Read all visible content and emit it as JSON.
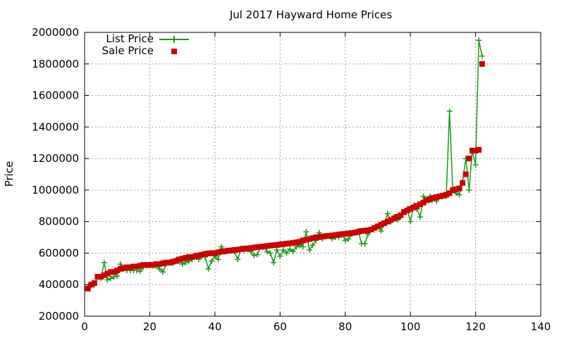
{
  "chart_data": {
    "type": "line",
    "title": "Jul 2017 Hayward Home Prices",
    "xlabel": "",
    "ylabel": "Price",
    "xlim": [
      0,
      140
    ],
    "ylim": [
      200000,
      2000000
    ],
    "x_ticks": [
      "0",
      "20",
      "40",
      "60",
      "80",
      "100",
      "120",
      "140"
    ],
    "y_ticks": [
      "200000",
      "400000",
      "600000",
      "800000",
      "1000000",
      "1200000",
      "1400000",
      "1600000",
      "1800000",
      "2000000"
    ],
    "grid": true,
    "legend_position": "top-left",
    "colors": {
      "list": "#1a9a1a",
      "sale": "#cc0000"
    },
    "sale": [
      375000,
      400000,
      410000,
      450000,
      450000,
      460000,
      470000,
      480000,
      480000,
      490000,
      500000,
      505000,
      510000,
      510000,
      515000,
      515000,
      520000,
      525000,
      525000,
      525000,
      525000,
      530000,
      530000,
      535000,
      540000,
      540000,
      545000,
      550000,
      560000,
      565000,
      570000,
      575000,
      575000,
      580000,
      585000,
      590000,
      595000,
      598000,
      600000,
      600000,
      605000,
      610000,
      612000,
      615000,
      617000,
      620000,
      622000,
      625000,
      628000,
      630000,
      632000,
      635000,
      638000,
      640000,
      642000,
      645000,
      648000,
      650000,
      652000,
      655000,
      657000,
      660000,
      662000,
      665000,
      668000,
      672000,
      680000,
      685000,
      690000,
      695000,
      700000,
      702000,
      705000,
      708000,
      710000,
      712000,
      715000,
      718000,
      720000,
      722000,
      725000,
      728000,
      730000,
      735000,
      740000,
      742000,
      745000,
      750000,
      760000,
      770000,
      780000,
      790000,
      800000,
      810000,
      820000,
      830000,
      840000,
      860000,
      870000,
      880000,
      890000,
      900000,
      910000,
      920000,
      935000,
      940000,
      950000,
      955000,
      960000,
      965000,
      970000,
      980000,
      1000000,
      1005000,
      1010000,
      1045000,
      1100000,
      1200000,
      1250000,
      1250000,
      1255000,
      1800000
    ],
    "list": [
      380000,
      395000,
      400000,
      450000,
      440000,
      540000,
      430000,
      440000,
      450000,
      455000,
      530000,
      500000,
      490000,
      490000,
      490000,
      490000,
      485000,
      510000,
      520000,
      525000,
      520000,
      520000,
      500000,
      480000,
      530000,
      540000,
      535000,
      555000,
      550000,
      530000,
      540000,
      550000,
      560000,
      585000,
      560000,
      580000,
      575000,
      500000,
      550000,
      580000,
      560000,
      640000,
      610000,
      615000,
      615000,
      610000,
      560000,
      630000,
      620000,
      625000,
      610000,
      585000,
      590000,
      640000,
      640000,
      610000,
      600000,
      540000,
      620000,
      580000,
      620000,
      600000,
      625000,
      610000,
      640000,
      650000,
      640000,
      735000,
      620000,
      650000,
      680000,
      730000,
      690000,
      705000,
      710000,
      690000,
      700000,
      700000,
      720000,
      680000,
      690000,
      720000,
      730000,
      740000,
      660000,
      660000,
      720000,
      750000,
      760000,
      770000,
      740000,
      790000,
      850000,
      800000,
      830000,
      810000,
      830000,
      860000,
      880000,
      800000,
      900000,
      880000,
      830000,
      960000,
      940000,
      960000,
      950000,
      930000,
      960000,
      960000,
      960000,
      1500000,
      1000000,
      980000,
      970000,
      1050000,
      1200000,
      1000000,
      1250000,
      1160000,
      1950000,
      1850000
    ],
    "series": [
      {
        "name": "List Price",
        "style": "line-with-crosses"
      },
      {
        "name": "Sale Price",
        "style": "filled-squares"
      }
    ]
  }
}
